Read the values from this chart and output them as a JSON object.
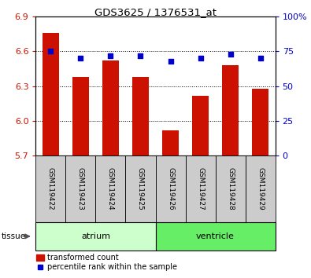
{
  "title": "GDS3625 / 1376531_at",
  "samples": [
    "GSM119422",
    "GSM119423",
    "GSM119424",
    "GSM119425",
    "GSM119426",
    "GSM119427",
    "GSM119428",
    "GSM119429"
  ],
  "bar_values": [
    6.76,
    6.38,
    6.52,
    6.38,
    5.92,
    6.22,
    6.48,
    6.28
  ],
  "dot_values": [
    75,
    70,
    72,
    72,
    68,
    70,
    73,
    70
  ],
  "ylim_left": [
    5.7,
    6.9
  ],
  "ylim_right": [
    0,
    100
  ],
  "yticks_left": [
    5.7,
    6.0,
    6.3,
    6.6,
    6.9
  ],
  "yticks_right": [
    0,
    25,
    50,
    75,
    100
  ],
  "bar_color": "#cc1100",
  "dot_color": "#0000cc",
  "plot_bg_color": "#ffffff",
  "tissue_groups": [
    {
      "label": "atrium",
      "samples": [
        0,
        1,
        2,
        3
      ],
      "color": "#ccffcc"
    },
    {
      "label": "ventricle",
      "samples": [
        4,
        5,
        6,
        7
      ],
      "color": "#66ee66"
    }
  ],
  "tissue_label": "tissue",
  "legend_bar_label": "transformed count",
  "legend_dot_label": "percentile rank within the sample",
  "bar_color_legend": "#cc1100",
  "dot_color_legend": "#0000cc",
  "axis_label_color_left": "#cc1100",
  "axis_label_color_right": "#0000cc",
  "sample_box_color": "#cccccc",
  "sample_box_edge": "#888888",
  "grid_linestyle": "dotted",
  "grid_color": "#000000",
  "grid_linewidth": 0.7
}
